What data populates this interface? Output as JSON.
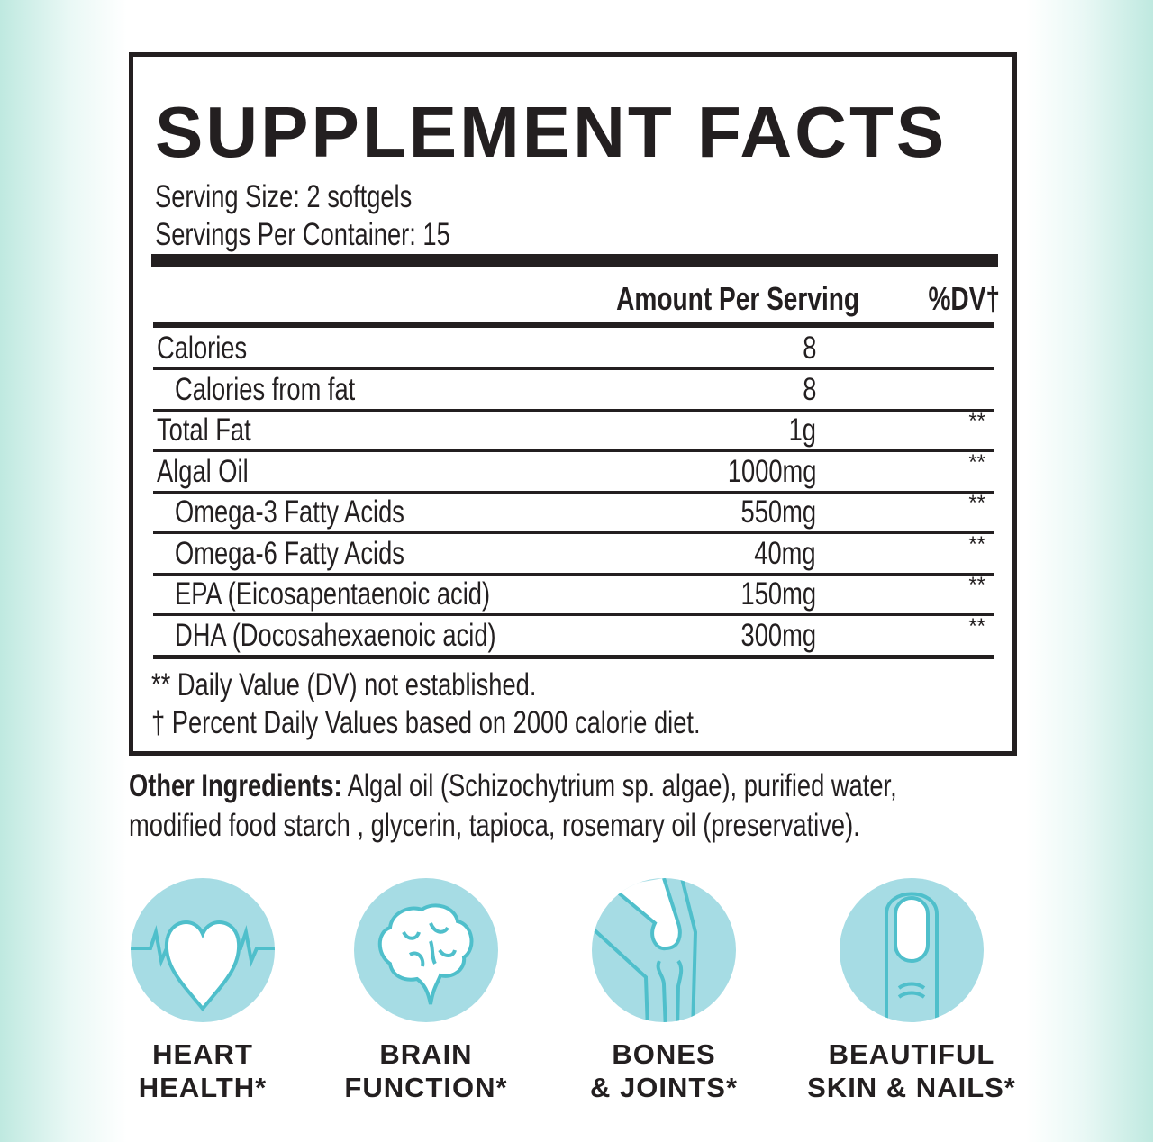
{
  "title": "SUPPLEMENT FACTS",
  "serving_size": "Serving Size: 2 softgels",
  "servings_per_container": "Servings Per Container: 15",
  "headers": {
    "amount": "Amount Per Serving",
    "dv": "%DV†"
  },
  "rows": [
    {
      "label": "Calories",
      "amount": "8",
      "dv": ""
    },
    {
      "label": "Calories from fat",
      "amount": "8",
      "dv": ""
    },
    {
      "label": "Total Fat",
      "amount": "1g",
      "dv": "**"
    },
    {
      "label": "Algal Oil",
      "amount": "1000mg",
      "dv": "**"
    },
    {
      "label": "Omega-3 Fatty Acids",
      "amount": "550mg",
      "dv": "**"
    },
    {
      "label": "Omega-6 Fatty Acids",
      "amount": "40mg",
      "dv": "**"
    },
    {
      "label": "EPA (Eicosapentaenoic acid)",
      "amount": "150mg",
      "dv": "**"
    },
    {
      "label": "DHA (Docosahexaenoic acid)",
      "amount": "300mg",
      "dv": "**"
    }
  ],
  "footnotes": [
    "** Daily Value (DV) not established.",
    "† Percent Daily Values based on 2000 calorie diet."
  ],
  "other_ingredients": {
    "label": "Other Ingredients:",
    "line1": " Algal oil (Schizochytrium sp. algae), purified water,",
    "line2": "modified food starch , glycerin, tapioca, rosemary oil (preservative)."
  },
  "benefits": [
    {
      "icon": "heart-icon",
      "line1": "HEART",
      "line2": "HEALTH*"
    },
    {
      "icon": "brain-icon",
      "line1": "BRAIN",
      "line2": "FUNCTION*"
    },
    {
      "icon": "knee-joint-icon",
      "line1": "BONES",
      "line2": "& JOINTS*"
    },
    {
      "icon": "fingernail-icon",
      "line1": "BEAUTIFUL",
      "line2": "SKIN & NAILS*"
    }
  ],
  "colors": {
    "icon_bg": "#a6dce4",
    "icon_line": "#4fbfcb",
    "text": "#231f20"
  }
}
